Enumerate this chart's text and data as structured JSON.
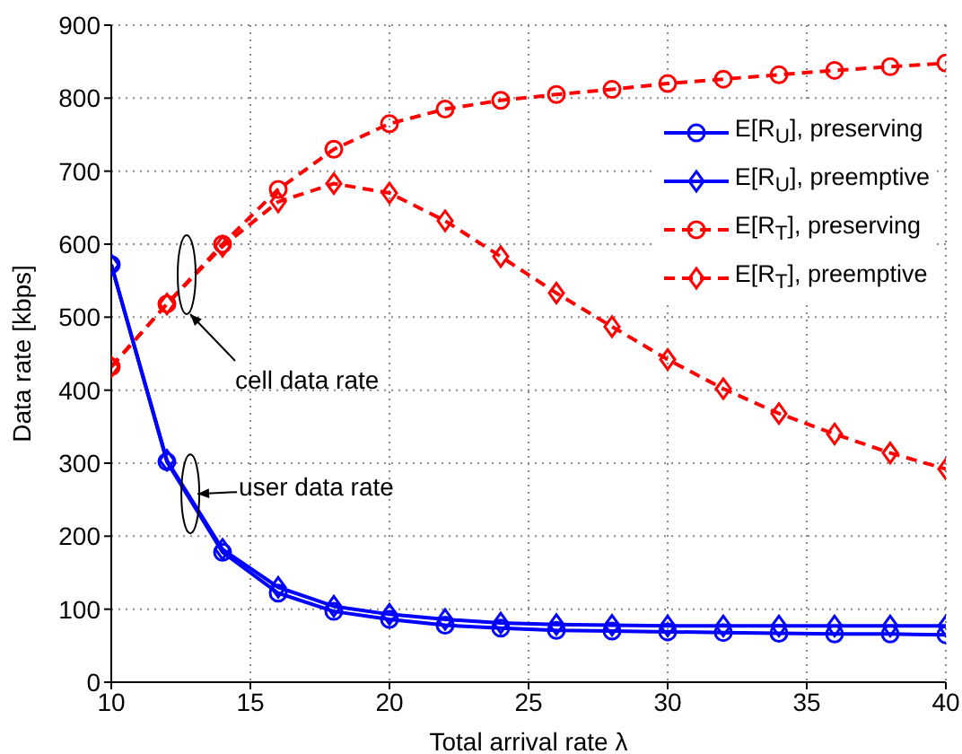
{
  "chart_data": {
    "type": "line",
    "xlabel": "Total arrival rate λ",
    "ylabel": "Data rate [kbps]",
    "x": [
      10,
      12,
      14,
      16,
      18,
      20,
      22,
      24,
      26,
      28,
      30,
      32,
      34,
      36,
      38,
      40
    ],
    "xlim": [
      10,
      40
    ],
    "xticks": [
      10,
      15,
      20,
      25,
      30,
      35,
      40
    ],
    "ylim": [
      0,
      900
    ],
    "yticks": [
      0,
      100,
      200,
      300,
      400,
      500,
      600,
      700,
      800,
      900
    ],
    "grid": true,
    "legend": "top right",
    "series": [
      {
        "name": "E[R$_{U}$], preserving",
        "color": "#0000ff",
        "marker": "circle",
        "line_style": "solid",
        "values": [
          572,
          302,
          178,
          122,
          97,
          86,
          78,
          74,
          71,
          70,
          69,
          68,
          67,
          66,
          66,
          65
        ]
      },
      {
        "name": "E[R$_{U}$], preemptive",
        "color": "#0000ff",
        "marker": "diamond",
        "line_style": "solid",
        "values": [
          572,
          304,
          182,
          130,
          104,
          93,
          86,
          81,
          79,
          78,
          77,
          77,
          77,
          77,
          77,
          77
        ]
      },
      {
        "name": "E[R$_{T}$], preserving",
        "color": "#ff0000",
        "marker": "circle",
        "line_style": "dashed",
        "values": [
          432,
          518,
          600,
          675,
          730,
          765,
          785,
          797,
          805,
          812,
          820,
          826,
          832,
          838,
          843,
          848
        ]
      },
      {
        "name": "E[R$_{T}$], preemptive",
        "color": "#ff0000",
        "marker": "diamond",
        "line_style": "dashed",
        "values": [
          432,
          518,
          597,
          658,
          683,
          670,
          632,
          583,
          533,
          487,
          442,
          402,
          368,
          340,
          314,
          292
        ]
      }
    ],
    "annotations": [
      "cell data rate",
      {
        "text": "user data rate",
        "x": 13.1,
        "y": 258
      }
    ]
  }
}
